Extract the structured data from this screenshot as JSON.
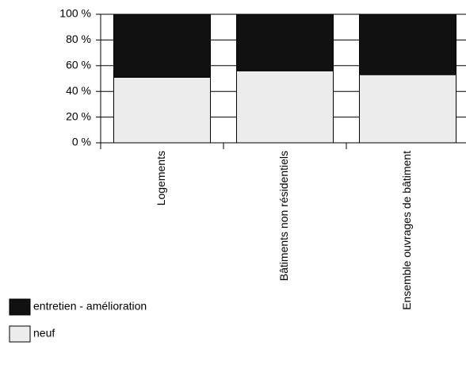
{
  "chart_data": {
    "type": "stacked_bar",
    "categories": [
      "Logements",
      "Bâtiments non résidentiels",
      "Ensemble ouvrages de bâtiment"
    ],
    "series": [
      {
        "name": "neuf",
        "color": "#ececec",
        "values": [
          51,
          56,
          53
        ]
      },
      {
        "name": "entretien - amélioration",
        "color": "#111111",
        "values": [
          49,
          44,
          47
        ]
      }
    ],
    "ylim": [
      0,
      100
    ],
    "yticks": [
      {
        "value": 0,
        "label": "0 %"
      },
      {
        "value": 20,
        "label": "20 %"
      },
      {
        "value": 40,
        "label": "40 %"
      },
      {
        "value": 60,
        "label": "60 %"
      },
      {
        "value": 80,
        "label": "80 %"
      },
      {
        "value": 100,
        "label": "100 %"
      }
    ],
    "grid": true
  }
}
